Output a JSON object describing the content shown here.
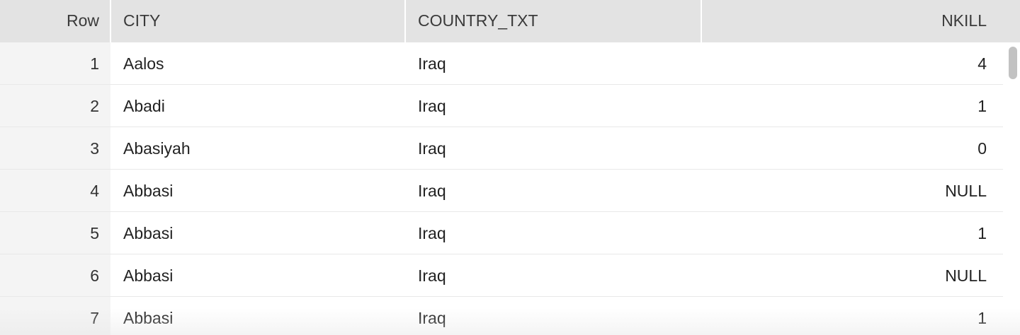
{
  "columns": {
    "row": "Row",
    "city": "CITY",
    "country": "COUNTRY_TXT",
    "nkill": "NKILL"
  },
  "rows": [
    {
      "row": "1",
      "city": "Aalos",
      "country": "Iraq",
      "nkill": "4"
    },
    {
      "row": "2",
      "city": "Abadi",
      "country": "Iraq",
      "nkill": "1"
    },
    {
      "row": "3",
      "city": "Abasiyah",
      "country": "Iraq",
      "nkill": "0"
    },
    {
      "row": "4",
      "city": "Abbasi",
      "country": "Iraq",
      "nkill": "NULL"
    },
    {
      "row": "5",
      "city": "Abbasi",
      "country": "Iraq",
      "nkill": "1"
    },
    {
      "row": "6",
      "city": "Abbasi",
      "country": "Iraq",
      "nkill": "NULL"
    },
    {
      "row": "7",
      "city": "Abbasi",
      "country": "Iraq",
      "nkill": "1"
    }
  ]
}
